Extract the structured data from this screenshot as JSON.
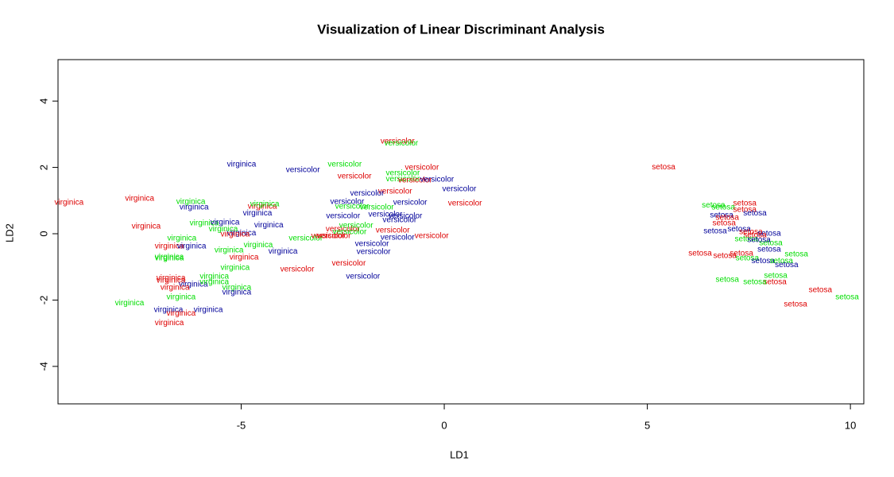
{
  "chart_data": {
    "type": "scatter",
    "title": "Visualization of Linear Discriminant Analysis",
    "xlabel": "LD1",
    "ylabel": "LD2",
    "xlim": [
      -9.51,
      10.33
    ],
    "ylim": [
      -5.13,
      5.25
    ],
    "xticks": [
      -5,
      0,
      5,
      10
    ],
    "yticks": [
      -4,
      -2,
      0,
      2,
      4
    ],
    "x": [
      -9.24,
      -7.5,
      -6.24,
      -6.16,
      -7.34,
      -5.91,
      -5.4,
      -5.44,
      -4.99,
      -5.15,
      -4.99,
      -4.6,
      -4.48,
      -4.42,
      -4.32,
      -6.46,
      -6.77,
      -6.22,
      -5.3,
      -4.58,
      -4.93,
      -3.97,
      -6.77,
      -6.77,
      -5.15,
      -5.66,
      -6.73,
      -6.73,
      -6.18,
      -5.66,
      -6.63,
      -5.11,
      -5.11,
      -6.48,
      -7.75,
      -6.79,
      -6.48,
      -5.81,
      -6.77,
      -1.15,
      -1.06,
      -2.45,
      -3.48,
      -2.21,
      -0.55,
      -1.02,
      -1.02,
      -0.72,
      -0.18,
      0.37,
      -1.21,
      -1.9,
      -2.39,
      -1.66,
      -2.27,
      0.51,
      -0.84,
      -2.49,
      -1.45,
      -0.96,
      -1.1,
      -2.5,
      -2.17,
      -2.33,
      -1.27,
      -0.31,
      -1.15,
      -3.41,
      -2.86,
      -2.72,
      -1.78,
      -1.74,
      -2.35,
      -3.62,
      -2.0,
      5.4,
      6.63,
      7.4,
      6.87,
      7.4,
      7.65,
      6.83,
      6.97,
      6.89,
      6.67,
      7.26,
      7.55,
      8.0,
      7.65,
      8.04,
      7.44,
      7.75,
      8.0,
      6.3,
      6.91,
      7.32,
      8.67,
      7.46,
      7.85,
      8.3,
      8.43,
      6.97,
      8.14,
      8.16,
      7.65,
      9.26,
      9.92,
      8.65
    ],
    "y": [
      0.94,
      1.06,
      0.96,
      0.79,
      0.22,
      0.31,
      0.34,
      0.14,
      0.02,
      -0.02,
      2.09,
      0.62,
      0.82,
      0.89,
      0.26,
      -0.14,
      -0.38,
      -0.38,
      -0.5,
      -0.34,
      -0.72,
      -0.53,
      -0.7,
      -0.74,
      -1.03,
      -1.29,
      -1.34,
      -1.41,
      -1.53,
      -1.46,
      -1.63,
      -1.63,
      -1.77,
      -1.92,
      -2.09,
      -2.3,
      -2.4,
      -2.3,
      -2.69,
      2.78,
      2.73,
      2.09,
      1.92,
      1.73,
      1.99,
      1.82,
      1.65,
      1.61,
      1.63,
      1.34,
      1.27,
      1.22,
      0.96,
      0.79,
      0.82,
      0.91,
      0.94,
      0.53,
      0.58,
      0.53,
      0.41,
      0.14,
      0.24,
      0.05,
      0.1,
      -0.07,
      -0.12,
      -0.14,
      -0.07,
      -0.07,
      -0.31,
      -0.55,
      -0.89,
      -1.08,
      -1.29,
      2.01,
      0.86,
      0.91,
      0.79,
      0.72,
      0.62,
      0.55,
      0.48,
      0.31,
      0.07,
      0.14,
      0.05,
      0.0,
      -0.05,
      -0.29,
      -0.17,
      -0.19,
      -0.48,
      -0.6,
      -0.67,
      -0.6,
      -0.62,
      -0.74,
      -0.82,
      -0.82,
      -0.94,
      -1.39,
      -1.46,
      -1.27,
      -1.46,
      -1.7,
      -1.92,
      -2.13
    ],
    "labels": [
      "virginica",
      "virginica",
      "virginica",
      "virginica",
      "virginica",
      "virginica",
      "virginica",
      "virginica",
      "virginica",
      "virginica",
      "virginica",
      "virginica",
      "virginica",
      "virginica",
      "virginica",
      "virginica",
      "virginica",
      "virginica",
      "virginica",
      "virginica",
      "virginica",
      "virginica",
      "virginica",
      "virginica",
      "virginica",
      "virginica",
      "virginica",
      "virginica",
      "virginica",
      "virginica",
      "virginica",
      "virginica",
      "virginica",
      "virginica",
      "virginica",
      "virginica",
      "virginica",
      "virginica",
      "virginica",
      "versicolor",
      "versicolor",
      "versicolor",
      "versicolor",
      "versicolor",
      "versicolor",
      "versicolor",
      "versicolor",
      "versicolor",
      "versicolor",
      "versicolor",
      "versicolor",
      "versicolor",
      "versicolor",
      "versicolor",
      "versicolor",
      "versicolor",
      "versicolor",
      "versicolor",
      "versicolor",
      "versicolor",
      "versicolor",
      "versicolor",
      "versicolor",
      "versicolor",
      "versicolor",
      "versicolor",
      "versicolor",
      "versicolor",
      "versicolor",
      "versicolor",
      "versicolor",
      "versicolor",
      "versicolor",
      "versicolor",
      "versicolor",
      "setosa",
      "setosa",
      "setosa",
      "setosa",
      "setosa",
      "setosa",
      "setosa",
      "setosa",
      "setosa",
      "setosa",
      "setosa",
      "setosa",
      "setosa",
      "setosa",
      "setosa",
      "setosa",
      "setosa",
      "setosa",
      "setosa",
      "setosa",
      "setosa",
      "setosa",
      "setosa",
      "setosa",
      "setosa",
      "setosa",
      "setosa",
      "setosa",
      "setosa",
      "setosa",
      "setosa",
      "setosa",
      "setosa"
    ],
    "colors": [
      "#dd0000",
      "#dd0000",
      "#00dd00",
      "#000099",
      "#dd0000",
      "#00dd00",
      "#000099",
      "#00dd00",
      "#000099",
      "#dd0000",
      "#000099",
      "#000099",
      "#dd0000",
      "#00dd00",
      "#000099",
      "#00dd00",
      "#dd0000",
      "#000099",
      "#00dd00",
      "#00dd00",
      "#dd0000",
      "#000099",
      "#00dd00",
      "#00dd00",
      "#00dd00",
      "#00dd00",
      "#dd0000",
      "#dd0000",
      "#000099",
      "#00dd00",
      "#dd0000",
      "#00dd00",
      "#000099",
      "#00dd00",
      "#00dd00",
      "#000099",
      "#dd0000",
      "#000099",
      "#dd0000",
      "#dd0000",
      "#00dd00",
      "#00dd00",
      "#000099",
      "#dd0000",
      "#dd0000",
      "#00dd00",
      "#00dd00",
      "#dd0000",
      "#000099",
      "#000099",
      "#dd0000",
      "#000099",
      "#000099",
      "#00dd00",
      "#00dd00",
      "#dd0000",
      "#000099",
      "#000099",
      "#000099",
      "#000099",
      "#000099",
      "#dd0000",
      "#00dd00",
      "#00dd00",
      "#dd0000",
      "#dd0000",
      "#000099",
      "#00dd00",
      "#dd0000",
      "#dd0000",
      "#000099",
      "#000099",
      "#dd0000",
      "#dd0000",
      "#000099",
      "#dd0000",
      "#00dd00",
      "#dd0000",
      "#00dd00",
      "#dd0000",
      "#000099",
      "#000099",
      "#dd0000",
      "#dd0000",
      "#000099",
      "#000099",
      "#dd0000",
      "#000099",
      "#dd0000",
      "#00dd00",
      "#00dd00",
      "#000099",
      "#000099",
      "#dd0000",
      "#dd0000",
      "#dd0000",
      "#00dd00",
      "#00dd00",
      "#000099",
      "#00dd00",
      "#000099",
      "#00dd00",
      "#dd0000",
      "#00dd00",
      "#00dd00",
      "#dd0000",
      "#00dd00",
      "#dd0000"
    ]
  }
}
